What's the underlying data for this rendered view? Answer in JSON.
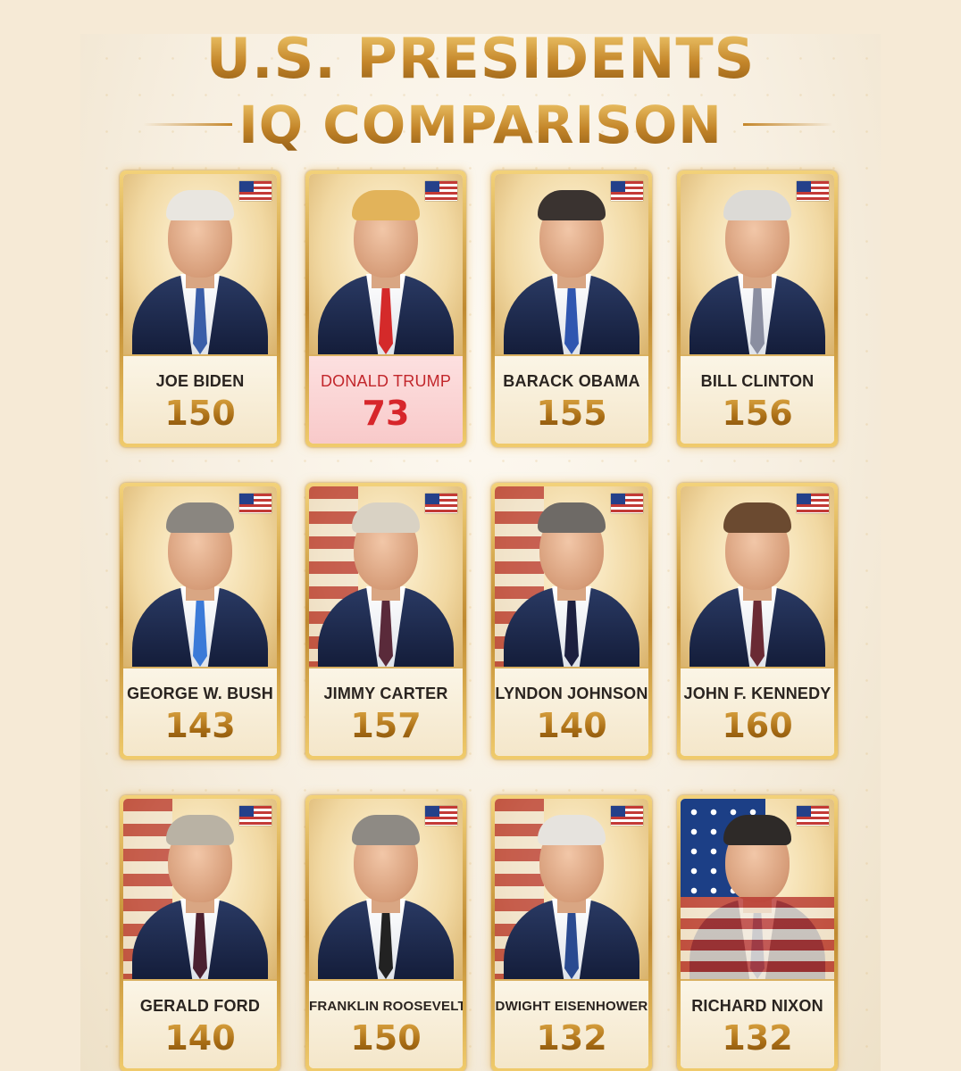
{
  "title_line1": "U.S. PRESIDENTS",
  "title_line2": "IQ COMPARISON",
  "colors": {
    "gold": "#c4862a",
    "highlight_red": "#d7262b",
    "highlight_bg": "#f8c9c9",
    "background": "#f6ead6"
  },
  "presidents": [
    {
      "name": "JOE BIDEN",
      "iq": "150",
      "tie": "#3a5ea8",
      "hair": "#e9e6e0"
    },
    {
      "name": "DONALD TRUMP",
      "iq": "73",
      "tie": "#d42a2a",
      "hair": "#e2b35a",
      "highlight": true
    },
    {
      "name": "BARACK OBAMA",
      "iq": "155",
      "tie": "#2f56b0",
      "hair": "#3a3330"
    },
    {
      "name": "BILL CLINTON",
      "iq": "156",
      "tie": "#8a8ea0",
      "hair": "#dcdad6"
    },
    {
      "name": "GEORGE W. BUSH",
      "iq": "143",
      "tie": "#3b7ad8",
      "hair": "#8a8680"
    },
    {
      "name": "JIMMY CARTER",
      "iq": "157",
      "tie": "#5a2a3a",
      "hair": "#d9d2c4"
    },
    {
      "name": "LYNDON JOHNSON",
      "iq": "140",
      "tie": "#1d2040",
      "hair": "#6e6a66"
    },
    {
      "name": "JOHN F. KENNEDY",
      "iq": "160",
      "tie": "#6a2a34",
      "hair": "#6b4a30"
    },
    {
      "name": "GERALD FORD",
      "iq": "140",
      "tie": "#4a2030",
      "hair": "#b9b2a4"
    },
    {
      "name": "FRANKLIN ROOSEVELT",
      "iq": "150",
      "tie": "#222222",
      "hair": "#8e8a84"
    },
    {
      "name": "DWIGHT EISENHOWER",
      "iq": "132",
      "tie": "#2a4a90",
      "hair": "#e6e3de"
    },
    {
      "name": "RICHARD NIXON",
      "iq": "132",
      "tie": "#3a5ea8",
      "hair": "#2e2a28"
    }
  ]
}
